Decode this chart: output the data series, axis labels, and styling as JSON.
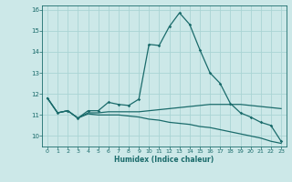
{
  "xlabel": "Humidex (Indice chaleur)",
  "background_color": "#cce8e8",
  "grid_color": "#aad4d4",
  "line_color": "#1a6b6b",
  "xlim": [
    -0.5,
    23.5
  ],
  "ylim": [
    9.5,
    16.2
  ],
  "yticks": [
    10,
    11,
    12,
    13,
    14,
    15,
    16
  ],
  "xticks": [
    0,
    1,
    2,
    3,
    4,
    5,
    6,
    7,
    8,
    9,
    10,
    11,
    12,
    13,
    14,
    15,
    16,
    17,
    18,
    19,
    20,
    21,
    22,
    23
  ],
  "line1_x": [
    0,
    1,
    2,
    3,
    4,
    5,
    6,
    7,
    8,
    9,
    10,
    11,
    12,
    13,
    14,
    15,
    16,
    17,
    18,
    19,
    20,
    21,
    22,
    23
  ],
  "line1_y": [
    11.8,
    11.1,
    11.2,
    10.85,
    11.2,
    11.2,
    11.6,
    11.5,
    11.45,
    11.75,
    14.35,
    14.3,
    15.2,
    15.85,
    15.3,
    14.1,
    13.0,
    12.5,
    11.55,
    11.1,
    10.9,
    10.65,
    10.5,
    9.75
  ],
  "line2_x": [
    0,
    1,
    2,
    3,
    4,
    5,
    6,
    7,
    8,
    9,
    10,
    11,
    12,
    13,
    14,
    15,
    16,
    17,
    18,
    19,
    20,
    21,
    22,
    23
  ],
  "line2_y": [
    11.8,
    11.1,
    11.2,
    10.85,
    11.1,
    11.1,
    11.15,
    11.15,
    11.15,
    11.15,
    11.2,
    11.25,
    11.3,
    11.35,
    11.4,
    11.45,
    11.5,
    11.5,
    11.5,
    11.5,
    11.45,
    11.4,
    11.35,
    11.3
  ],
  "line3_x": [
    0,
    1,
    2,
    3,
    4,
    5,
    6,
    7,
    8,
    9,
    10,
    11,
    12,
    13,
    14,
    15,
    16,
    17,
    18,
    19,
    20,
    21,
    22,
    23
  ],
  "line3_y": [
    11.8,
    11.1,
    11.2,
    10.85,
    11.05,
    11.0,
    11.0,
    11.0,
    10.95,
    10.9,
    10.8,
    10.75,
    10.65,
    10.6,
    10.55,
    10.45,
    10.4,
    10.3,
    10.2,
    10.1,
    10.0,
    9.9,
    9.75,
    9.65
  ]
}
